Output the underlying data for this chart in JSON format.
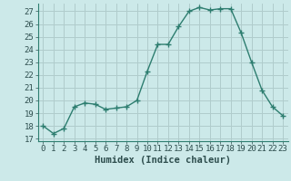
{
  "x": [
    0,
    1,
    2,
    3,
    4,
    5,
    6,
    7,
    8,
    9,
    10,
    11,
    12,
    13,
    14,
    15,
    16,
    17,
    18,
    19,
    20,
    21,
    22,
    23
  ],
  "y": [
    18.0,
    17.4,
    17.8,
    19.5,
    19.8,
    19.7,
    19.3,
    19.4,
    19.5,
    20.0,
    22.3,
    24.4,
    24.4,
    25.8,
    27.0,
    27.3,
    27.1,
    27.2,
    27.2,
    25.3,
    23.0,
    20.8,
    19.5,
    18.8
  ],
  "line_color": "#2d7d6f",
  "marker": "+",
  "marker_size": 4,
  "bg_color": "#cce9e9",
  "grid_color": "#b0cccc",
  "xlabel": "Humidex (Indice chaleur)",
  "ylabel_ticks": [
    17,
    18,
    19,
    20,
    21,
    22,
    23,
    24,
    25,
    26,
    27
  ],
  "ylim": [
    16.8,
    27.6
  ],
  "xlim": [
    -0.5,
    23.5
  ],
  "xlabel_fontsize": 7.5,
  "tick_fontsize": 6.5,
  "line_width": 1.0,
  "marker_color": "#2d7d6f"
}
